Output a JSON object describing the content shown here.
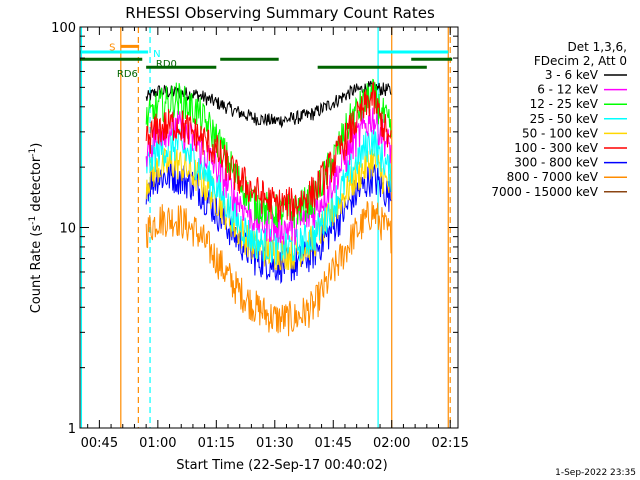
{
  "chart_data": {
    "type": "line",
    "title": "RHESSI Observing Summary Count Rates",
    "xlabel": "Start Time (22-Sep-17 00:40:02)",
    "ylabel_prefix": "Count Rate (s",
    "ylabel_sup1": "-1",
    "ylabel_mid": " detector",
    "ylabel_sup2": "-1",
    "ylabel_suffix": ")",
    "yscale": "log",
    "ylim": [
      1,
      100
    ],
    "y_ticks": [
      {
        "v": 1,
        "label": "1"
      },
      {
        "v": 10,
        "label": "10"
      },
      {
        "v": 100,
        "label": "100"
      }
    ],
    "xlim_min": [
      40.03,
      137
    ],
    "x_ticks": [
      {
        "v": 45,
        "label": "00:45"
      },
      {
        "v": 60,
        "label": "01:00"
      },
      {
        "v": 75,
        "label": "01:15"
      },
      {
        "v": 90,
        "label": "01:30"
      },
      {
        "v": 105,
        "label": "01:45"
      },
      {
        "v": 120,
        "label": "02:00"
      },
      {
        "v": 135,
        "label": "02:15"
      }
    ],
    "legend_header": [
      "Det 1,3,6,",
      "FDecim 2, Att 0"
    ],
    "series": [
      {
        "name": "3 - 6 keV",
        "color": "#000000",
        "x": [
          57,
          60,
          65,
          70,
          75,
          80,
          85,
          90,
          95,
          100,
          105,
          110,
          115,
          120
        ],
        "y": [
          44,
          48,
          47,
          46,
          42,
          38,
          35,
          34,
          35,
          37,
          42,
          48,
          50,
          48
        ]
      },
      {
        "name": "6 - 12 keV",
        "color": "#ff00ff",
        "x": [
          57,
          60,
          65,
          70,
          75,
          80,
          85,
          90,
          95,
          100,
          105,
          110,
          115,
          120
        ],
        "y": [
          24,
          30,
          32,
          26,
          20,
          14,
          11,
          10,
          10,
          12,
          17,
          26,
          36,
          24
        ]
      },
      {
        "name": "12 - 25 keV",
        "color": "#00ff00",
        "x": [
          57,
          60,
          65,
          70,
          75,
          80,
          85,
          90,
          95,
          100,
          105,
          110,
          115,
          120
        ],
        "y": [
          34,
          40,
          44,
          38,
          28,
          18,
          13,
          12,
          12,
          14,
          22,
          36,
          46,
          30
        ]
      },
      {
        "name": "25 - 50 keV",
        "color": "#00ffff",
        "x": [
          57,
          60,
          65,
          70,
          75,
          80,
          85,
          90,
          95,
          100,
          105,
          110,
          115,
          120
        ],
        "y": [
          20,
          24,
          26,
          21,
          16,
          11,
          8.5,
          8,
          8,
          9,
          13,
          20,
          28,
          18
        ]
      },
      {
        "name": "50 - 100 keV",
        "color": "#ffd700",
        "x": [
          57,
          60,
          65,
          70,
          75,
          80,
          85,
          90,
          95,
          100,
          105,
          110,
          115,
          120
        ],
        "y": [
          17,
          20,
          21,
          18,
          14,
          10,
          8,
          7.5,
          7.5,
          8.5,
          12,
          17,
          22,
          15
        ]
      },
      {
        "name": "100 - 300 keV",
        "color": "#ff0000",
        "x": [
          57,
          60,
          65,
          70,
          75,
          80,
          85,
          90,
          95,
          100,
          105,
          110,
          115,
          120
        ],
        "y": [
          27,
          31,
          33,
          29,
          24,
          18,
          15,
          13,
          13,
          15,
          21,
          32,
          45,
          25
        ]
      },
      {
        "name": "300 - 800 keV",
        "color": "#0000ff",
        "x": [
          57,
          60,
          65,
          70,
          75,
          80,
          85,
          90,
          95,
          100,
          105,
          110,
          115,
          120
        ],
        "y": [
          16,
          18,
          18,
          16,
          12,
          9,
          7,
          6.5,
          6.5,
          7.5,
          10,
          14,
          18,
          14
        ]
      },
      {
        "name": "800 - 7000 keV",
        "color": "#ff8c00",
        "x": [
          57,
          60,
          65,
          70,
          75,
          80,
          85,
          90,
          95,
          100,
          105,
          110,
          115,
          120
        ],
        "y": [
          9.5,
          11,
          11,
          9.5,
          7,
          5,
          4,
          3.5,
          3.5,
          4,
          6,
          9,
          12,
          9
        ]
      },
      {
        "name": "7000 - 15000 keV",
        "color": "#8b4513",
        "x": [],
        "y": []
      }
    ],
    "vertical_lines": [
      {
        "x": 40.4,
        "color": "#00ffff",
        "style": "solid"
      },
      {
        "x": 50.5,
        "color": "#ff8c00",
        "style": "solid"
      },
      {
        "x": 55.0,
        "color": "#ff8c00",
        "style": "dashed"
      },
      {
        "x": 58.0,
        "color": "#00ffff",
        "style": "dashed"
      },
      {
        "x": 116.5,
        "color": "#00ffff",
        "style": "solid"
      },
      {
        "x": 120.0,
        "color": "#ff8c00",
        "style": "solid"
      },
      {
        "x": 134.5,
        "color": "#ff8c00",
        "style": "solid"
      },
      {
        "x": 135.0,
        "color": "#ff8c00",
        "style": "dashed"
      }
    ],
    "bars": [
      {
        "color": "#00ffff",
        "y": 75,
        "segments": [
          [
            40.03,
            57.5
          ],
          [
            116.5,
            134.5
          ]
        ]
      },
      {
        "color": "#ff8c00",
        "y": 80,
        "segments": [
          [
            50.5,
            55.2
          ]
        ]
      },
      {
        "color": "#006400",
        "y": 69,
        "segments": [
          [
            40.03,
            56
          ],
          [
            76,
            91
          ]
        ]
      },
      {
        "color": "#006400",
        "y": 63,
        "segments": [
          [
            57,
            75
          ],
          [
            101,
            129
          ]
        ]
      },
      {
        "color": "#006400",
        "y": 69,
        "segments": [
          [
            125,
            135.5
          ]
        ]
      }
    ],
    "annotations": [
      {
        "text": "S",
        "x": 47.5,
        "y": 80,
        "color": "#ff8c00"
      },
      {
        "text": "N",
        "x": 58.8,
        "y": 74,
        "color": "#00ffff"
      },
      {
        "text": "RD0",
        "x": 59.5,
        "y": 66,
        "color": "#006400"
      },
      {
        "text": "RD6",
        "x": 49.5,
        "y": 59,
        "color": "#006400"
      }
    ]
  },
  "footer_timestamp": "1-Sep-2022 23:35"
}
